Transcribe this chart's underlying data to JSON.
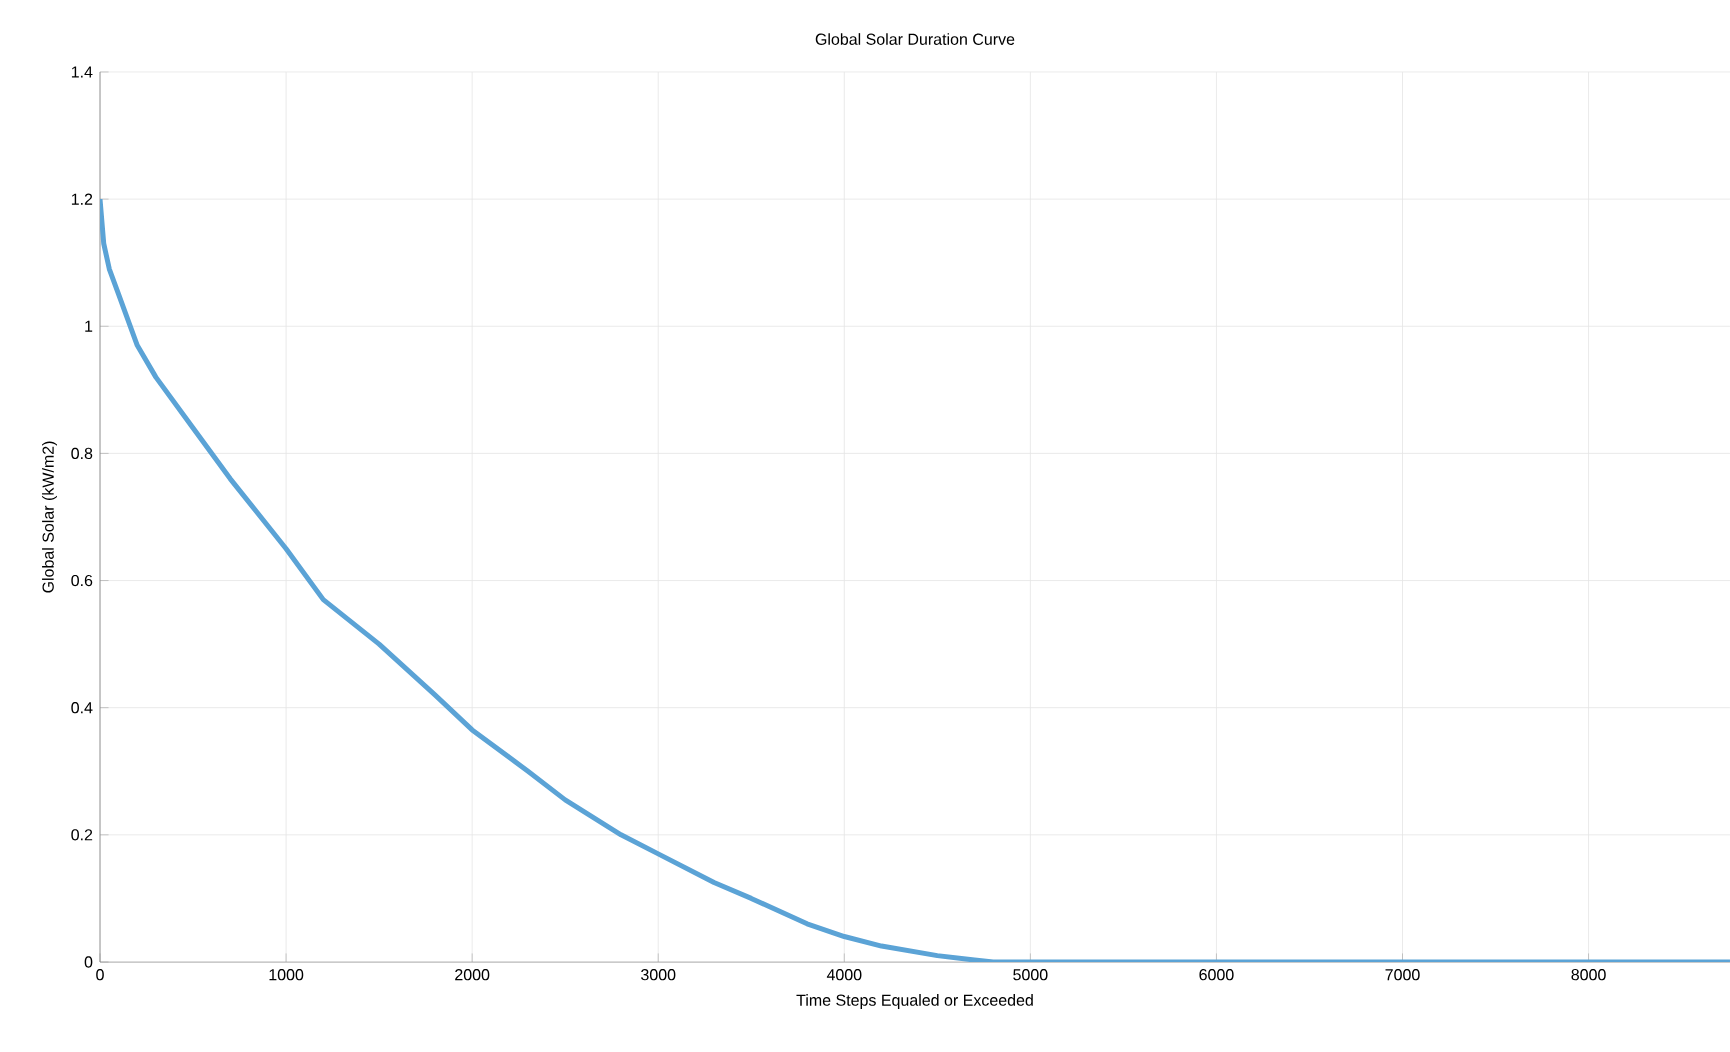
{
  "chart_data": {
    "type": "line",
    "title": "Global Solar Duration Curve",
    "xlabel": "Time Steps Equaled or Exceeded",
    "ylabel": "Global Solar (kW/m2)",
    "x": [
      0,
      20,
      50,
      100,
      200,
      300,
      500,
      700,
      1000,
      1200,
      1500,
      1800,
      2000,
      2300,
      2500,
      2800,
      3000,
      3300,
      3500,
      3800,
      4000,
      4200,
      4500,
      4700,
      4800,
      5000,
      6000,
      7000,
      8000,
      8760
    ],
    "series": [
      {
        "color": "#5ba3d6",
        "values": [
          1.2,
          1.13,
          1.09,
          1.05,
          0.97,
          0.92,
          0.84,
          0.76,
          0.65,
          0.57,
          0.5,
          0.42,
          0.365,
          0.3,
          0.255,
          0.2,
          0.17,
          0.125,
          0.1,
          0.06,
          0.04,
          0.025,
          0.01,
          0.003,
          0,
          0,
          0,
          0,
          0,
          0
        ]
      }
    ],
    "xlim": [
      0,
      8760
    ],
    "ylim": [
      0,
      1.4
    ],
    "xticks": [
      0,
      1000,
      2000,
      3000,
      4000,
      5000,
      6000,
      7000,
      8000
    ],
    "yticks": [
      0,
      0.2,
      0.4,
      0.6,
      0.8,
      1,
      1.2,
      1.4
    ],
    "grid": true,
    "marker": "none",
    "line_style": "solid"
  }
}
